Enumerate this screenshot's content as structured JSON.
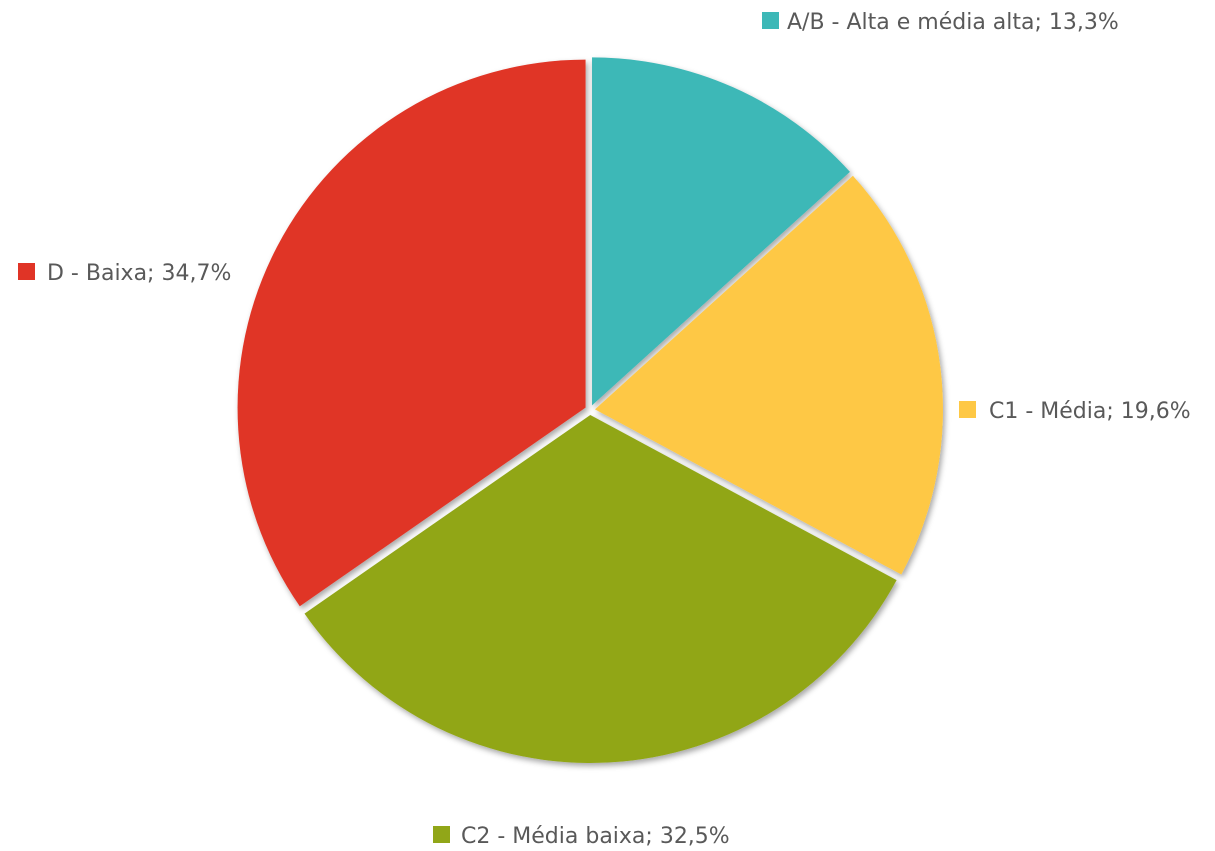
{
  "chart_data": {
    "type": "pie",
    "slices": [
      {
        "name": "A/B - Alta e média alta",
        "value": 13.3,
        "label": "A/B - Alta e média alta; 13,3%",
        "color": "#3DB8B7"
      },
      {
        "name": "C1 - Média",
        "value": 19.6,
        "label": "C1 - Média; 19,6%",
        "color": "#FEC845"
      },
      {
        "name": "C2 - Média baixa",
        "value": 32.5,
        "label": "C2 - Média baixa; 32,5%",
        "color": "#91A618"
      },
      {
        "name": "D - Baixa",
        "value": 34.7,
        "label": "D - Baixa; 34,7%",
        "color": "#E03426"
      }
    ]
  }
}
